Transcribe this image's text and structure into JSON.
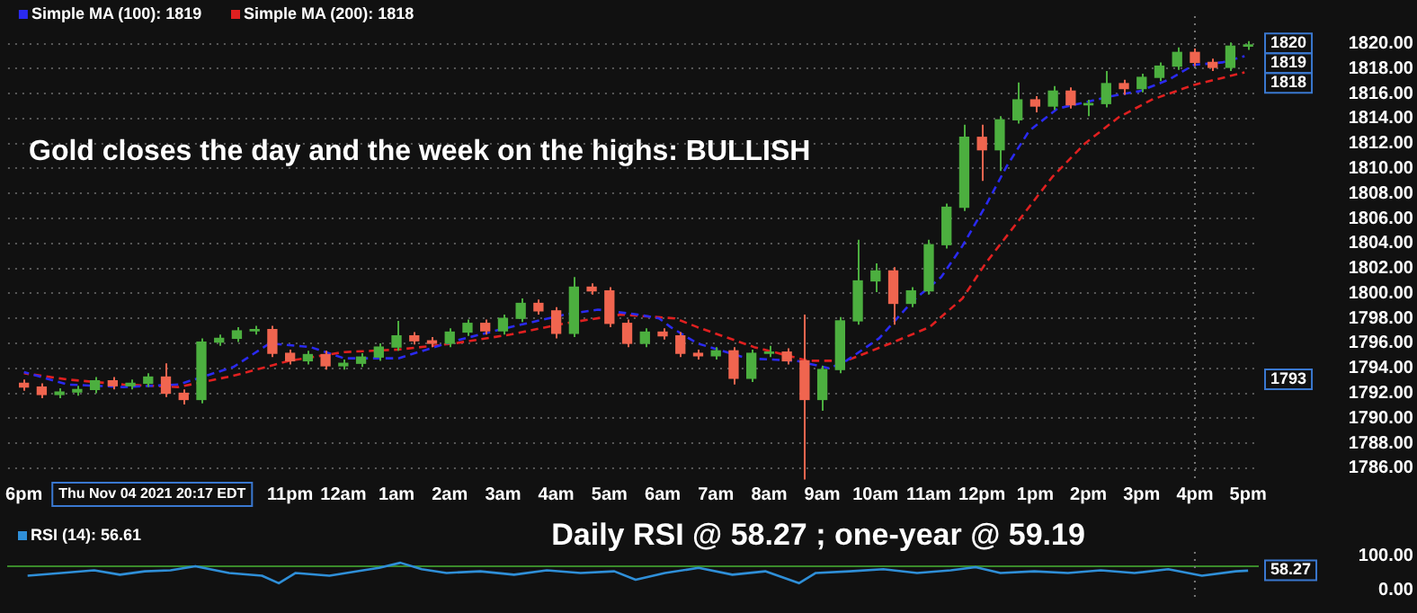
{
  "chart_data": [
    {
      "type": "candlestick",
      "title": "Gold closes the day and the week on the highs: BULLISH",
      "x": [
        "2021-11-04T18:00",
        "2021-11-04T18:20",
        "2021-11-04T18:40",
        "2021-11-04T19:00",
        "2021-11-04T19:20",
        "2021-11-04T19:40",
        "2021-11-04T20:00",
        "2021-11-04T20:20",
        "2021-11-04T20:40",
        "2021-11-04T21:00",
        "2021-11-04T21:20",
        "2021-11-04T21:40",
        "2021-11-04T22:00",
        "2021-11-04T22:20",
        "2021-11-04T22:40",
        "2021-11-04T23:00",
        "2021-11-04T23:20",
        "2021-11-04T23:40",
        "2021-11-05T00:00",
        "2021-11-05T00:20",
        "2021-11-05T00:40",
        "2021-11-05T01:00",
        "2021-11-05T01:20",
        "2021-11-05T01:40",
        "2021-11-05T02:00",
        "2021-11-05T02:20",
        "2021-11-05T02:40",
        "2021-11-05T03:00",
        "2021-11-05T03:20",
        "2021-11-05T03:40",
        "2021-11-05T04:00",
        "2021-11-05T04:20",
        "2021-11-05T04:40",
        "2021-11-05T05:00",
        "2021-11-05T05:20",
        "2021-11-05T05:40",
        "2021-11-05T06:00",
        "2021-11-05T06:20",
        "2021-11-05T06:40",
        "2021-11-05T07:00",
        "2021-11-05T07:20",
        "2021-11-05T07:40",
        "2021-11-05T08:00",
        "2021-11-05T08:20",
        "2021-11-05T08:40",
        "2021-11-05T09:00",
        "2021-11-05T09:20",
        "2021-11-05T09:40",
        "2021-11-05T10:00",
        "2021-11-05T10:20",
        "2021-11-05T10:40",
        "2021-11-05T11:00",
        "2021-11-05T11:20",
        "2021-11-05T11:40",
        "2021-11-05T12:00",
        "2021-11-05T12:20",
        "2021-11-05T12:40",
        "2021-11-05T13:00",
        "2021-11-05T13:20",
        "2021-11-05T13:40",
        "2021-11-05T14:00",
        "2021-11-05T14:20",
        "2021-11-05T14:40",
        "2021-11-05T15:00",
        "2021-11-05T15:20",
        "2021-11-05T15:40",
        "2021-11-05T16:00",
        "2021-11-05T16:20",
        "2021-11-05T16:40",
        "2021-11-05T17:00"
      ],
      "ohlc": [
        [
          1792.8,
          1793.1,
          1792.2,
          1792.5
        ],
        [
          1792.5,
          1792.8,
          1791.6,
          1791.9
        ],
        [
          1791.9,
          1792.4,
          1791.6,
          1792.1
        ],
        [
          1792.1,
          1792.6,
          1791.8,
          1792.3
        ],
        [
          1792.3,
          1793.3,
          1792.0,
          1793.0
        ],
        [
          1793.0,
          1793.3,
          1792.3,
          1792.6
        ],
        [
          1792.6,
          1793.1,
          1792.3,
          1792.8
        ],
        [
          1792.8,
          1793.6,
          1792.5,
          1793.3
        ],
        [
          1793.3,
          1794.4,
          1791.7,
          1792.0
        ],
        [
          1792.0,
          1792.3,
          1791.1,
          1791.5
        ],
        [
          1791.5,
          1796.4,
          1791.2,
          1796.1
        ],
        [
          1796.1,
          1796.7,
          1795.8,
          1796.4
        ],
        [
          1796.4,
          1797.3,
          1796.1,
          1797.0
        ],
        [
          1797.0,
          1797.4,
          1796.7,
          1797.1
        ],
        [
          1797.1,
          1797.4,
          1794.9,
          1795.2
        ],
        [
          1795.2,
          1795.5,
          1794.3,
          1794.6
        ],
        [
          1794.6,
          1795.4,
          1794.3,
          1795.1
        ],
        [
          1795.1,
          1795.4,
          1793.9,
          1794.2
        ],
        [
          1794.2,
          1794.7,
          1793.9,
          1794.4
        ],
        [
          1794.4,
          1795.2,
          1794.1,
          1794.9
        ],
        [
          1794.9,
          1796.0,
          1794.6,
          1795.7
        ],
        [
          1795.7,
          1797.8,
          1795.4,
          1796.6
        ],
        [
          1796.6,
          1796.9,
          1795.9,
          1796.2
        ],
        [
          1796.2,
          1796.5,
          1795.7,
          1796.0
        ],
        [
          1796.0,
          1797.2,
          1795.7,
          1796.9
        ],
        [
          1796.9,
          1797.9,
          1796.6,
          1797.6
        ],
        [
          1797.6,
          1797.9,
          1796.7,
          1797.0
        ],
        [
          1797.0,
          1798.3,
          1796.7,
          1798.0
        ],
        [
          1798.0,
          1799.6,
          1797.7,
          1799.2
        ],
        [
          1799.2,
          1799.5,
          1798.3,
          1798.6
        ],
        [
          1798.6,
          1798.9,
          1796.4,
          1796.8
        ],
        [
          1796.8,
          1801.3,
          1796.5,
          1800.5
        ],
        [
          1800.5,
          1800.8,
          1799.9,
          1800.2
        ],
        [
          1800.2,
          1800.5,
          1797.3,
          1797.6
        ],
        [
          1797.6,
          1797.9,
          1795.7,
          1796.0
        ],
        [
          1796.0,
          1797.2,
          1795.7,
          1796.9
        ],
        [
          1796.9,
          1797.2,
          1796.3,
          1796.6
        ],
        [
          1796.6,
          1796.9,
          1794.9,
          1795.2
        ],
        [
          1795.2,
          1795.5,
          1794.7,
          1795.0
        ],
        [
          1795.0,
          1795.7,
          1794.7,
          1795.4
        ],
        [
          1795.4,
          1795.7,
          1792.7,
          1793.2
        ],
        [
          1793.2,
          1795.5,
          1792.9,
          1795.2
        ],
        [
          1795.2,
          1795.8,
          1794.9,
          1795.3
        ],
        [
          1795.3,
          1795.6,
          1794.3,
          1794.6
        ],
        [
          1794.6,
          1798.3,
          1785.1,
          1791.5
        ],
        [
          1791.5,
          1794.2,
          1790.6,
          1793.9
        ],
        [
          1793.9,
          1798.1,
          1793.6,
          1797.8
        ],
        [
          1797.8,
          1804.3,
          1797.5,
          1801.0
        ],
        [
          1801.0,
          1802.4,
          1800.1,
          1801.8
        ],
        [
          1801.8,
          1802.1,
          1797.5,
          1799.2
        ],
        [
          1799.2,
          1800.5,
          1798.9,
          1800.2
        ],
        [
          1800.2,
          1804.3,
          1799.9,
          1803.9
        ],
        [
          1803.9,
          1807.2,
          1803.6,
          1806.9
        ],
        [
          1806.9,
          1813.5,
          1806.6,
          1812.5
        ],
        [
          1812.5,
          1813.5,
          1809.0,
          1811.5
        ],
        [
          1811.5,
          1814.2,
          1809.8,
          1813.9
        ],
        [
          1813.9,
          1816.9,
          1813.6,
          1815.5
        ],
        [
          1815.5,
          1815.8,
          1814.5,
          1815.0
        ],
        [
          1815.0,
          1816.6,
          1814.7,
          1816.2
        ],
        [
          1816.2,
          1816.5,
          1814.8,
          1815.1
        ],
        [
          1815.1,
          1815.5,
          1814.2,
          1815.2
        ],
        [
          1815.2,
          1817.8,
          1814.9,
          1816.8
        ],
        [
          1816.8,
          1817.1,
          1815.9,
          1816.4
        ],
        [
          1816.4,
          1817.6,
          1816.1,
          1817.3
        ],
        [
          1817.3,
          1818.5,
          1817.0,
          1818.2
        ],
        [
          1818.2,
          1819.7,
          1817.9,
          1819.3
        ],
        [
          1819.3,
          1819.6,
          1818.2,
          1818.5
        ],
        [
          1818.5,
          1818.8,
          1817.8,
          1818.1
        ],
        [
          1818.1,
          1820.1,
          1817.8,
          1819.8
        ],
        [
          1819.8,
          1820.2,
          1819.5,
          1819.9
        ]
      ],
      "colors": [
        "#f0654f",
        "#f0654f",
        "#4caf3f",
        "#4caf3f",
        "#4caf3f",
        "#f0654f",
        "#4caf3f",
        "#4caf3f",
        "#f0654f",
        "#f0654f",
        "#4caf3f",
        "#4caf3f",
        "#4caf3f",
        "#4caf3f",
        "#f0654f",
        "#f0654f",
        "#4caf3f",
        "#f0654f",
        "#4caf3f",
        "#4caf3f",
        "#4caf3f",
        "#4caf3f",
        "#f0654f",
        "#f0654f",
        "#4caf3f",
        "#4caf3f",
        "#f0654f",
        "#4caf3f",
        "#4caf3f",
        "#f0654f",
        "#f0654f",
        "#4caf3f",
        "#f0654f",
        "#f0654f",
        "#f0654f",
        "#4caf3f",
        "#f0654f",
        "#f0654f",
        "#f0654f",
        "#4caf3f",
        "#f0654f",
        "#4caf3f",
        "#4caf3f",
        "#f0654f",
        "#f0654f",
        "#4caf3f",
        "#4caf3f",
        "#4caf3f",
        "#4caf3f",
        "#f0654f",
        "#4caf3f",
        "#4caf3f",
        "#4caf3f",
        "#4caf3f",
        "#f0654f",
        "#4caf3f",
        "#4caf3f",
        "#f0654f",
        "#4caf3f",
        "#f0654f",
        "#4caf3f",
        "#4caf3f",
        "#f0654f",
        "#4caf3f",
        "#4caf3f",
        "#4caf3f",
        "#f0654f",
        "#f0654f",
        "#4caf3f",
        "#4caf3f"
      ],
      "series": [
        {
          "name": "Simple MA (100): 1819",
          "type": "line",
          "color": "#2a2af0",
          "x": [
            "2021-11-04T18:00",
            "2021-11-04T18:49",
            "2021-11-04T19:52",
            "2021-11-04T20:54",
            "2021-11-04T21:56",
            "2021-11-04T22:37",
            "2021-11-04T23:23",
            "2021-11-05T00:01",
            "2021-11-05T01:02",
            "2021-11-05T02:06",
            "2021-11-05T03:08",
            "2021-11-05T04:10",
            "2021-11-05T04:47",
            "2021-11-05T05:32",
            "2021-11-05T05:56",
            "2021-11-05T06:09",
            "2021-11-05T06:39",
            "2021-11-05T07:35",
            "2021-11-05T08:31",
            "2021-11-05T09:08",
            "2021-11-05T09:27",
            "2021-11-05T10:04",
            "2021-11-05T10:42",
            "2021-11-05T11:14",
            "2021-11-05T11:38",
            "2021-11-05T12:04",
            "2021-11-05T12:28",
            "2021-11-05T12:53",
            "2021-11-05T13:25",
            "2021-11-05T13:56",
            "2021-11-05T14:26",
            "2021-11-05T14:58",
            "2021-11-05T15:30",
            "2021-11-05T15:59",
            "2021-11-05T16:31",
            "2021-11-05T16:56"
          ],
          "values": [
            1793.7,
            1792.7,
            1792.5,
            1792.7,
            1794.1,
            1796.0,
            1795.7,
            1794.8,
            1794.8,
            1796.2,
            1797.3,
            1798.3,
            1798.7,
            1798.3,
            1798.0,
            1797.3,
            1796.0,
            1794.8,
            1794.6,
            1794.0,
            1794.6,
            1796.4,
            1799.4,
            1801.3,
            1803.8,
            1807.0,
            1810.2,
            1813.0,
            1814.8,
            1815.3,
            1815.8,
            1816.2,
            1817.1,
            1818.3,
            1818.5,
            1819.0
          ]
        },
        {
          "name": "Simple MA (200): 1818",
          "type": "line",
          "color": "#e02020",
          "x": [
            "2021-11-04T18:00",
            "2021-11-04T18:49",
            "2021-11-04T19:52",
            "2021-11-04T20:54",
            "2021-11-04T21:56",
            "2021-11-04T22:59",
            "2021-11-05T00:01",
            "2021-11-05T01:02",
            "2021-11-05T02:06",
            "2021-11-05T03:08",
            "2021-11-05T04:10",
            "2021-11-05T05:13",
            "2021-11-05T06:14",
            "2021-11-05T06:39",
            "2021-11-05T07:43",
            "2021-11-05T08:44",
            "2021-11-05T09:27",
            "2021-11-05T10:17",
            "2021-11-05T11:01",
            "2021-11-05T11:38",
            "2021-11-05T12:04",
            "2021-11-05T12:41",
            "2021-11-05T13:19",
            "2021-11-05T13:56",
            "2021-11-05T14:34",
            "2021-11-05T15:11",
            "2021-11-05T15:59",
            "2021-11-05T16:56"
          ],
          "values": [
            1793.6,
            1793.1,
            1792.7,
            1792.5,
            1793.4,
            1794.6,
            1795.3,
            1795.5,
            1796.0,
            1796.7,
            1797.6,
            1798.3,
            1798.0,
            1797.3,
            1795.7,
            1794.6,
            1794.6,
            1796.0,
            1797.3,
            1799.6,
            1802.4,
            1805.8,
            1809.3,
            1812.0,
            1814.1,
            1815.5,
            1816.7,
            1817.7
          ]
        }
      ],
      "line_style": "dashed",
      "xlim": [
        "2021-11-04T17:42",
        "2021-11-05T17:12"
      ],
      "xticks": [
        {
          "value": "2021-11-04T18:00",
          "label": "6pm"
        },
        {
          "value": "2021-11-04T23:00",
          "label": "11pm"
        },
        {
          "value": "2021-11-05T00:00",
          "label": "12am"
        },
        {
          "value": "2021-11-05T01:00",
          "label": "1am"
        },
        {
          "value": "2021-11-05T02:00",
          "label": "2am"
        },
        {
          "value": "2021-11-05T03:00",
          "label": "3am"
        },
        {
          "value": "2021-11-05T04:00",
          "label": "4am"
        },
        {
          "value": "2021-11-05T05:00",
          "label": "5am"
        },
        {
          "value": "2021-11-05T06:00",
          "label": "6am"
        },
        {
          "value": "2021-11-05T07:00",
          "label": "7am"
        },
        {
          "value": "2021-11-05T08:00",
          "label": "8am"
        },
        {
          "value": "2021-11-05T09:00",
          "label": "9am"
        },
        {
          "value": "2021-11-05T10:00",
          "label": "10am"
        },
        {
          "value": "2021-11-05T11:00",
          "label": "11am"
        },
        {
          "value": "2021-11-05T12:00",
          "label": "12pm"
        },
        {
          "value": "2021-11-05T13:00",
          "label": "1pm"
        },
        {
          "value": "2021-11-05T14:00",
          "label": "2pm"
        },
        {
          "value": "2021-11-05T15:00",
          "label": "3pm"
        },
        {
          "value": "2021-11-05T16:00",
          "label": "4pm"
        },
        {
          "value": "2021-11-05T17:00",
          "label": "5pm"
        }
      ],
      "ylim": [
        1785.2,
        1822.2
      ],
      "yticks": [
        {
          "value": 1786,
          "label": "1786.00"
        },
        {
          "value": 1788,
          "label": "1788.00"
        },
        {
          "value": 1790,
          "label": "1790.00"
        },
        {
          "value": 1792,
          "label": "1792.00"
        },
        {
          "value": 1794,
          "label": "1794.00"
        },
        {
          "value": 1796,
          "label": "1796.00"
        },
        {
          "value": 1798,
          "label": "1798.00"
        },
        {
          "value": 1800,
          "label": "1800.00"
        },
        {
          "value": 1802,
          "label": "1802.00"
        },
        {
          "value": 1804,
          "label": "1804.00"
        },
        {
          "value": 1806,
          "label": "1806.00"
        },
        {
          "value": 1808,
          "label": "1808.00"
        },
        {
          "value": 1810,
          "label": "1810.00"
        },
        {
          "value": 1812,
          "label": "1812.00"
        },
        {
          "value": 1814,
          "label": "1814.00"
        },
        {
          "value": 1816,
          "label": "1816.00"
        },
        {
          "value": 1818,
          "label": "1818.00"
        },
        {
          "value": 1820,
          "label": "1820.00"
        }
      ],
      "grid": "y",
      "legend": "top left",
      "ref_lines": [
        {
          "axis": "x",
          "value": "2021-11-05T16:00",
          "color": "#777777",
          "line_style": "dotted"
        }
      ],
      "annotations": [
        "Thu Nov 04 2021 20:17 EDT",
        "1820",
        "1819",
        "1818",
        "1793"
      ]
    },
    {
      "type": "line",
      "title": "Daily RSI @ 58.27 ; one-year @ 59.19",
      "series": [
        {
          "name": "RSI (14): 56.61",
          "color": "#2f8fd8",
          "x": [
            "2021-11-04T18:05",
            "2021-11-04T18:43",
            "2021-11-04T19:20",
            "2021-11-04T19:49",
            "2021-11-04T20:17",
            "2021-11-04T20:46",
            "2021-11-04T21:14",
            "2021-11-04T21:52",
            "2021-11-04T22:29",
            "2021-11-04T22:48",
            "2021-11-04T23:07",
            "2021-11-04T23:45",
            "2021-11-05T00:23",
            "2021-11-05T00:41",
            "2021-11-05T01:05",
            "2021-11-05T01:29",
            "2021-11-05T01:57",
            "2021-11-05T02:35",
            "2021-11-05T03:13",
            "2021-11-05T03:50",
            "2021-11-05T04:28",
            "2021-11-05T05:06",
            "2021-11-05T05:30",
            "2021-11-05T06:03",
            "2021-11-05T06:41",
            "2021-11-05T07:19",
            "2021-11-05T07:56",
            "2021-11-05T08:34",
            "2021-11-05T08:53",
            "2021-11-05T09:31",
            "2021-11-05T10:09",
            "2021-11-05T10:47",
            "2021-11-05T11:25",
            "2021-11-05T11:53",
            "2021-11-05T12:21",
            "2021-11-05T12:59",
            "2021-11-05T13:37",
            "2021-11-05T14:14",
            "2021-11-05T14:52",
            "2021-11-05T15:30",
            "2021-11-05T16:08",
            "2021-11-05T16:46",
            "2021-11-05T17:00"
          ],
          "values": [
            42,
            50,
            58,
            45,
            55,
            58,
            70,
            50,
            42,
            20,
            50,
            42,
            58,
            65,
            80,
            61,
            50,
            55,
            45,
            58,
            50,
            55,
            30,
            50,
            65,
            45,
            55,
            20,
            50,
            55,
            61,
            50,
            58,
            67,
            50,
            55,
            50,
            58,
            50,
            61,
            42,
            55,
            57
          ]
        }
      ],
      "xlim": [
        "2021-11-04T17:42",
        "2021-11-05T17:12"
      ],
      "ylim": [
        -20,
        112
      ],
      "yticks": [
        {
          "value": 0,
          "label": "0.00"
        },
        {
          "value": 100,
          "label": "100.00"
        }
      ],
      "tick_labels": "y",
      "legend": "top left",
      "ref_lines": [
        {
          "axis": "y",
          "value": 70,
          "color": "#3a8a2a"
        },
        {
          "axis": "x",
          "value": "2021-11-05T16:00",
          "color": "#777777",
          "line_style": "dotted"
        }
      ],
      "annotations": [
        "58.27"
      ]
    }
  ]
}
